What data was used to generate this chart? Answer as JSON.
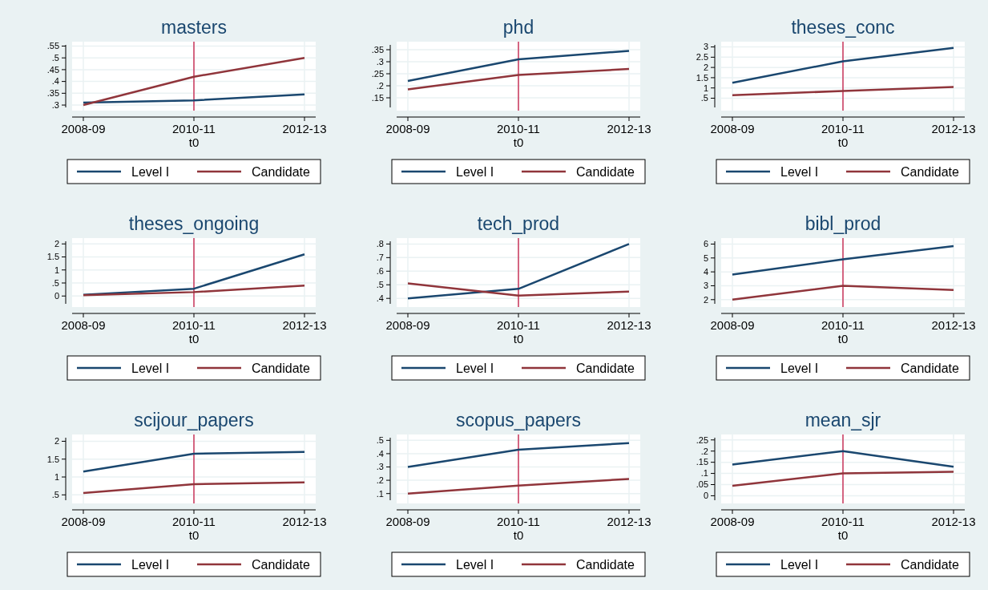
{
  "chart_data": [
    {
      "type": "line",
      "title": "masters",
      "categories": [
        "2008-09",
        "2010-11",
        "2012-13"
      ],
      "xlabel": "t0",
      "ylim": [
        0.29,
        0.555
      ],
      "yticks": [
        {
          "value": 0.3,
          "label": ".3"
        },
        {
          "value": 0.35,
          "label": ".35"
        },
        {
          "value": 0.4,
          "label": ".4"
        },
        {
          "value": 0.45,
          "label": ".45"
        },
        {
          "value": 0.5,
          "label": ".5"
        },
        {
          "value": 0.55,
          "label": ".55"
        }
      ],
      "grid": true,
      "legend": "bottom",
      "ref_lines": [
        {
          "axis": "x",
          "value": "2010-11",
          "color": "#c10534"
        }
      ],
      "series": [
        {
          "name": "Level I",
          "color": "#1a476f",
          "values": [
            0.31,
            0.32,
            0.345
          ]
        },
        {
          "name": "Candidate",
          "color": "#90353b",
          "values": [
            0.3,
            0.42,
            0.5
          ]
        }
      ]
    },
    {
      "type": "line",
      "title": "phd",
      "categories": [
        "2008-09",
        "2010-11",
        "2012-13"
      ],
      "xlabel": "t0",
      "ylim": [
        0.11,
        0.37
      ],
      "yticks": [
        {
          "value": 0.15,
          "label": ".15"
        },
        {
          "value": 0.2,
          "label": ".2"
        },
        {
          "value": 0.25,
          "label": ".25"
        },
        {
          "value": 0.3,
          "label": ".3"
        },
        {
          "value": 0.35,
          "label": ".35"
        }
      ],
      "grid": true,
      "legend": "bottom",
      "ref_lines": [
        {
          "axis": "x",
          "value": "2010-11",
          "color": "#c10534"
        }
      ],
      "series": [
        {
          "name": "Level I",
          "color": "#1a476f",
          "values": [
            0.22,
            0.31,
            0.345
          ]
        },
        {
          "name": "Candidate",
          "color": "#90353b",
          "values": [
            0.185,
            0.245,
            0.27
          ]
        }
      ]
    },
    {
      "type": "line",
      "title": "theses_conc",
      "categories": [
        "2008-09",
        "2010-11",
        "2012-13"
      ],
      "xlabel": "t0",
      "ylim": [
        0.05,
        3.1
      ],
      "yticks": [
        {
          "value": 0.5,
          "label": ".5"
        },
        1,
        1.5,
        2,
        2.5,
        3
      ],
      "grid": true,
      "legend": "bottom",
      "ref_lines": [
        {
          "axis": "x",
          "value": "2010-11",
          "color": "#c10534"
        }
      ],
      "series": [
        {
          "name": "Level I",
          "color": "#1a476f",
          "values": [
            1.25,
            2.3,
            2.95
          ]
        },
        {
          "name": "Candidate",
          "color": "#90353b",
          "values": [
            0.65,
            0.85,
            1.05
          ]
        }
      ]
    },
    {
      "type": "line",
      "title": "theses_ongoing",
      "categories": [
        "2008-09",
        "2010-11",
        "2012-13"
      ],
      "xlabel": "t0",
      "ylim": [
        -0.3,
        2.1
      ],
      "yticks": [
        0,
        {
          "value": 0.5,
          "label": ".5"
        },
        1,
        1.5,
        2
      ],
      "grid": true,
      "legend": "bottom",
      "ref_lines": [
        {
          "axis": "x",
          "value": "2010-11",
          "color": "#c10534"
        }
      ],
      "series": [
        {
          "name": "Level I",
          "color": "#1a476f",
          "values": [
            0.05,
            0.28,
            1.6
          ]
        },
        {
          "name": "Candidate",
          "color": "#90353b",
          "values": [
            0.03,
            0.15,
            0.4
          ]
        }
      ]
    },
    {
      "type": "line",
      "title": "tech_prod",
      "categories": [
        "2008-09",
        "2010-11",
        "2012-13"
      ],
      "xlabel": "t0",
      "ylim": [
        0.36,
        0.82
      ],
      "yticks": [
        {
          "value": 0.4,
          "label": ".4"
        },
        {
          "value": 0.5,
          "label": ".5"
        },
        {
          "value": 0.6,
          "label": ".6"
        },
        {
          "value": 0.7,
          "label": ".7"
        },
        {
          "value": 0.8,
          "label": ".8"
        }
      ],
      "grid": true,
      "legend": "bottom",
      "ref_lines": [
        {
          "axis": "x",
          "value": "2010-11",
          "color": "#c10534"
        }
      ],
      "series": [
        {
          "name": "Level I",
          "color": "#1a476f",
          "values": [
            0.4,
            0.47,
            0.8
          ]
        },
        {
          "name": "Candidate",
          "color": "#90353b",
          "values": [
            0.51,
            0.42,
            0.45
          ]
        }
      ]
    },
    {
      "type": "line",
      "title": "bibl_prod",
      "categories": [
        "2008-09",
        "2010-11",
        "2012-13"
      ],
      "xlabel": "t0",
      "ylim": [
        1.7,
        6.2
      ],
      "yticks": [
        2,
        3,
        4,
        5,
        6
      ],
      "grid": true,
      "legend": "bottom",
      "ref_lines": [
        {
          "axis": "x",
          "value": "2010-11",
          "color": "#c10534"
        }
      ],
      "series": [
        {
          "name": "Level I",
          "color": "#1a476f",
          "values": [
            3.8,
            4.9,
            5.85
          ]
        },
        {
          "name": "Candidate",
          "color": "#90353b",
          "values": [
            2,
            3,
            2.7
          ]
        }
      ]
    },
    {
      "type": "line",
      "title": "scijour_papers",
      "categories": [
        "2008-09",
        "2010-11",
        "2012-13"
      ],
      "xlabel": "t0",
      "ylim": [
        0.35,
        2.1
      ],
      "yticks": [
        {
          "value": 0.5,
          "label": ".5"
        },
        1,
        1.5,
        2
      ],
      "grid": true,
      "legend": "bottom",
      "ref_lines": [
        {
          "axis": "x",
          "value": "2010-11",
          "color": "#c10534"
        }
      ],
      "series": [
        {
          "name": "Level I",
          "color": "#1a476f",
          "values": [
            1.15,
            1.65,
            1.7
          ]
        },
        {
          "name": "Candidate",
          "color": "#90353b",
          "values": [
            0.55,
            0.8,
            0.85
          ]
        }
      ]
    },
    {
      "type": "line",
      "title": "scopus_papers",
      "categories": [
        "2008-09",
        "2010-11",
        "2012-13"
      ],
      "xlabel": "t0",
      "ylim": [
        0.05,
        0.52
      ],
      "yticks": [
        {
          "value": 0.1,
          "label": ".1"
        },
        {
          "value": 0.2,
          "label": ".2"
        },
        {
          "value": 0.3,
          "label": ".3"
        },
        {
          "value": 0.4,
          "label": ".4"
        },
        {
          "value": 0.5,
          "label": ".5"
        }
      ],
      "grid": true,
      "legend": "bottom",
      "ref_lines": [
        {
          "axis": "x",
          "value": "2010-11",
          "color": "#c10534"
        }
      ],
      "series": [
        {
          "name": "Level I",
          "color": "#1a476f",
          "values": [
            0.3,
            0.43,
            0.48
          ]
        },
        {
          "name": "Candidate",
          "color": "#90353b",
          "values": [
            0.1,
            0.16,
            0.21
          ]
        }
      ]
    },
    {
      "type": "line",
      "title": "mean_sjr",
      "categories": [
        "2008-09",
        "2010-11",
        "2012-13"
      ],
      "xlabel": "t0",
      "ylim": [
        -0.02,
        0.26
      ],
      "yticks": [
        0,
        {
          "value": 0.05,
          "label": ".05"
        },
        {
          "value": 0.1,
          "label": ".1"
        },
        {
          "value": 0.15,
          "label": ".15"
        },
        {
          "value": 0.2,
          "label": ".2"
        },
        {
          "value": 0.25,
          "label": ".25"
        }
      ],
      "grid": true,
      "legend": "bottom",
      "ref_lines": [
        {
          "axis": "x",
          "value": "2010-11",
          "color": "#c10534"
        }
      ],
      "series": [
        {
          "name": "Level I",
          "color": "#1a476f",
          "values": [
            0.14,
            0.2,
            0.13
          ]
        },
        {
          "name": "Candidate",
          "color": "#90353b",
          "values": [
            0.045,
            0.1,
            0.107
          ]
        }
      ]
    }
  ]
}
